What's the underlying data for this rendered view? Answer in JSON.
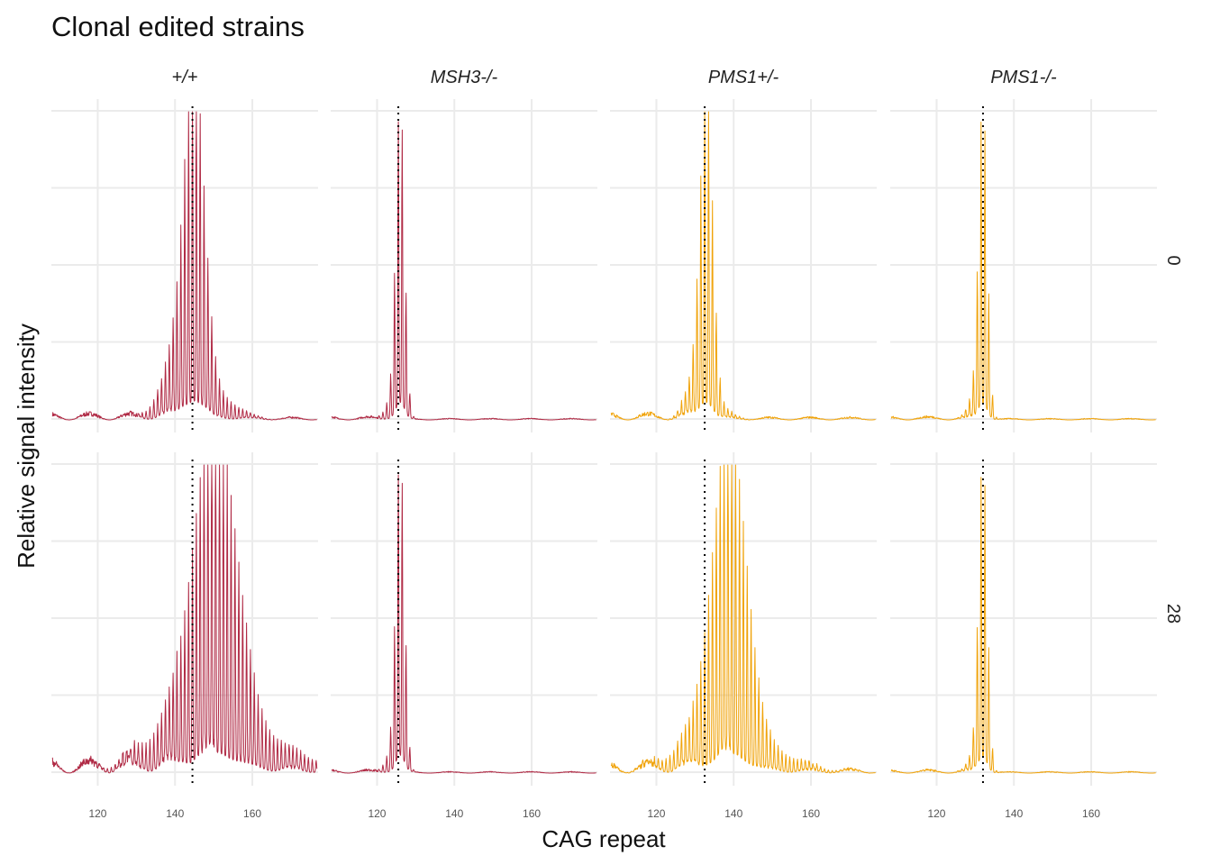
{
  "chart_data": {
    "type": "line",
    "title": "Clonal edited strains",
    "xlabel": "CAG repeat",
    "ylabel": "Relative signal intensity",
    "xlim": [
      108,
      177
    ],
    "x_ticks": [
      120,
      140,
      160
    ],
    "grid": true,
    "legend": "none",
    "facet_cols": [
      {
        "label": "+/+",
        "color": "#b02a45",
        "modal_repeat": 144.5
      },
      {
        "label": "MSH3-/-",
        "color": "#b02a45",
        "modal_repeat": 125.5
      },
      {
        "label": "PMS1+/-",
        "color": "#f0a30a",
        "modal_repeat": 132.5
      },
      {
        "label": "PMS1-/-",
        "color": "#f0a30a",
        "modal_repeat": 132
      }
    ],
    "facet_rows": [
      "0",
      "28"
    ],
    "series": [
      {
        "genotype": "+/+",
        "day": "0",
        "peak_repeat": 145,
        "peak_width": 2.6,
        "left_shoulder": 0.2,
        "right_shoulder": 0.08,
        "baseline": 0.02
      },
      {
        "genotype": "MSH3-/-",
        "day": "0",
        "peak_repeat": 126,
        "peak_width": 1.1,
        "left_shoulder": 0.08,
        "right_shoulder": 0.0,
        "baseline": 0.01
      },
      {
        "genotype": "PMS1+/-",
        "day": "0",
        "peak_repeat": 133,
        "peak_width": 1.6,
        "left_shoulder": 0.14,
        "right_shoulder": 0.03,
        "baseline": 0.02
      },
      {
        "genotype": "PMS1-/-",
        "day": "0",
        "peak_repeat": 132,
        "peak_width": 1.1,
        "left_shoulder": 0.08,
        "right_shoulder": 0.0,
        "baseline": 0.01
      },
      {
        "genotype": "+/+",
        "day": "28",
        "peak_repeat": 150.5,
        "peak_width": 5.5,
        "left_shoulder": 0.15,
        "right_shoulder": 0.1,
        "baseline": 0.04
      },
      {
        "genotype": "MSH3-/-",
        "day": "28",
        "peak_repeat": 126,
        "peak_width": 1.1,
        "left_shoulder": 0.08,
        "right_shoulder": 0.0,
        "baseline": 0.01
      },
      {
        "genotype": "PMS1+/-",
        "day": "28",
        "peak_repeat": 139,
        "peak_width": 4.3,
        "left_shoulder": 0.12,
        "right_shoulder": 0.07,
        "baseline": 0.03
      },
      {
        "genotype": "PMS1-/-",
        "day": "28",
        "peak_repeat": 132,
        "peak_width": 1.1,
        "left_shoulder": 0.07,
        "right_shoulder": 0.0,
        "baseline": 0.01
      }
    ]
  }
}
